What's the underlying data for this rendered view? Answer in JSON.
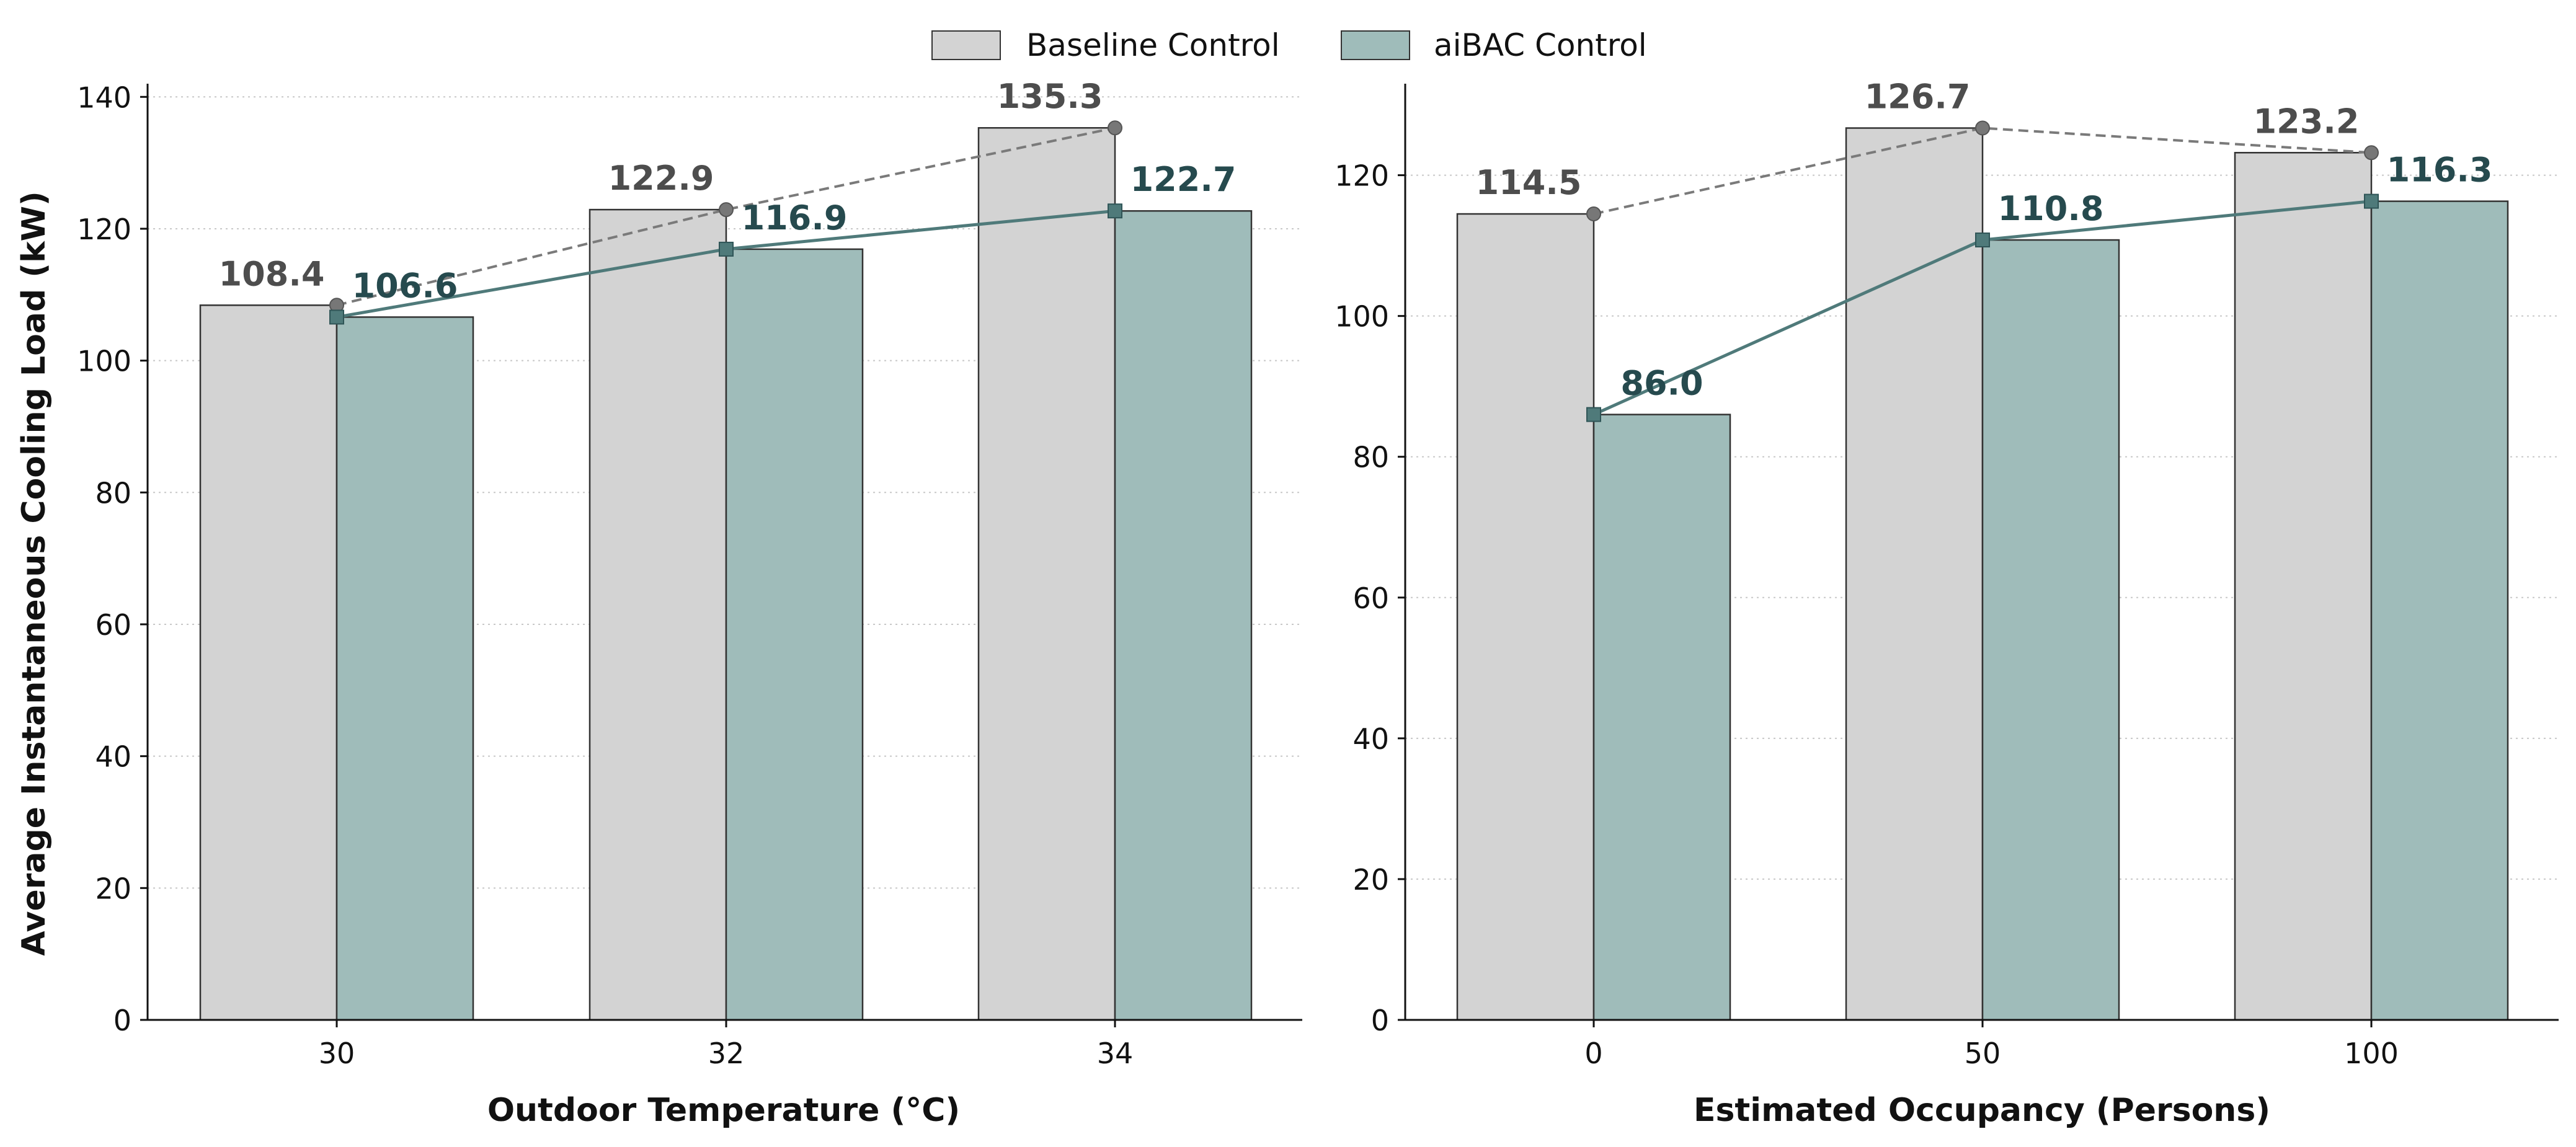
{
  "legend": {
    "items": [
      {
        "label": "Baseline Control",
        "color": "#d3d3d3"
      },
      {
        "label": "aiBAC Control",
        "color": "#9fbcba"
      }
    ]
  },
  "shared_ylabel": "Average Instantaneous Cooling Load (kW)",
  "colors": {
    "baseline_bar": "#d3d3d3",
    "aibac_bar": "#9fbcba",
    "bar_edge": "#333333",
    "baseline_line": "#7a7a7a",
    "aibac_line": "#4f7a7a",
    "baseline_label": "#4d4d4d",
    "aibac_label": "#264a4e"
  },
  "chart_data": [
    {
      "type": "bar",
      "xlabel": "Outdoor Temperature (°C)",
      "ylabel": "Average Instantaneous Cooling Load (kW)",
      "categories": [
        "30",
        "32",
        "34"
      ],
      "series": [
        {
          "name": "Baseline Control",
          "values": [
            108.4,
            122.9,
            135.3
          ]
        },
        {
          "name": "aiBAC Control",
          "values": [
            106.6,
            116.9,
            122.7
          ]
        }
      ],
      "value_labels": {
        "Baseline Control": [
          "108.4",
          "122.9",
          "135.3"
        ],
        "aiBAC Control": [
          "106.6",
          "116.9",
          "122.7"
        ]
      },
      "ylim": [
        0,
        142
      ],
      "yticks": [
        0,
        20,
        40,
        60,
        80,
        100,
        120,
        140
      ],
      "grid": "horizontal-dotted",
      "overlay_lines": "connects series values at category centers (baseline dashed with circle markers, aiBAC solid with square markers)"
    },
    {
      "type": "bar",
      "xlabel": "Estimated Occupancy (Persons)",
      "ylabel": "",
      "categories": [
        "0",
        "50",
        "100"
      ],
      "series": [
        {
          "name": "Baseline Control",
          "values": [
            114.5,
            126.7,
            123.2
          ]
        },
        {
          "name": "aiBAC Control",
          "values": [
            86.0,
            110.8,
            116.3
          ]
        }
      ],
      "value_labels": {
        "Baseline Control": [
          "114.5",
          "126.7",
          "123.2"
        ],
        "aiBAC Control": [
          "86.0",
          "110.8",
          "116.3"
        ]
      },
      "ylim": [
        0,
        133
      ],
      "yticks": [
        0,
        20,
        40,
        60,
        80,
        100,
        120
      ],
      "grid": "horizontal-dotted",
      "overlay_lines": "connects series values at category centers (baseline dashed with circle markers, aiBAC solid with square markers)"
    }
  ]
}
